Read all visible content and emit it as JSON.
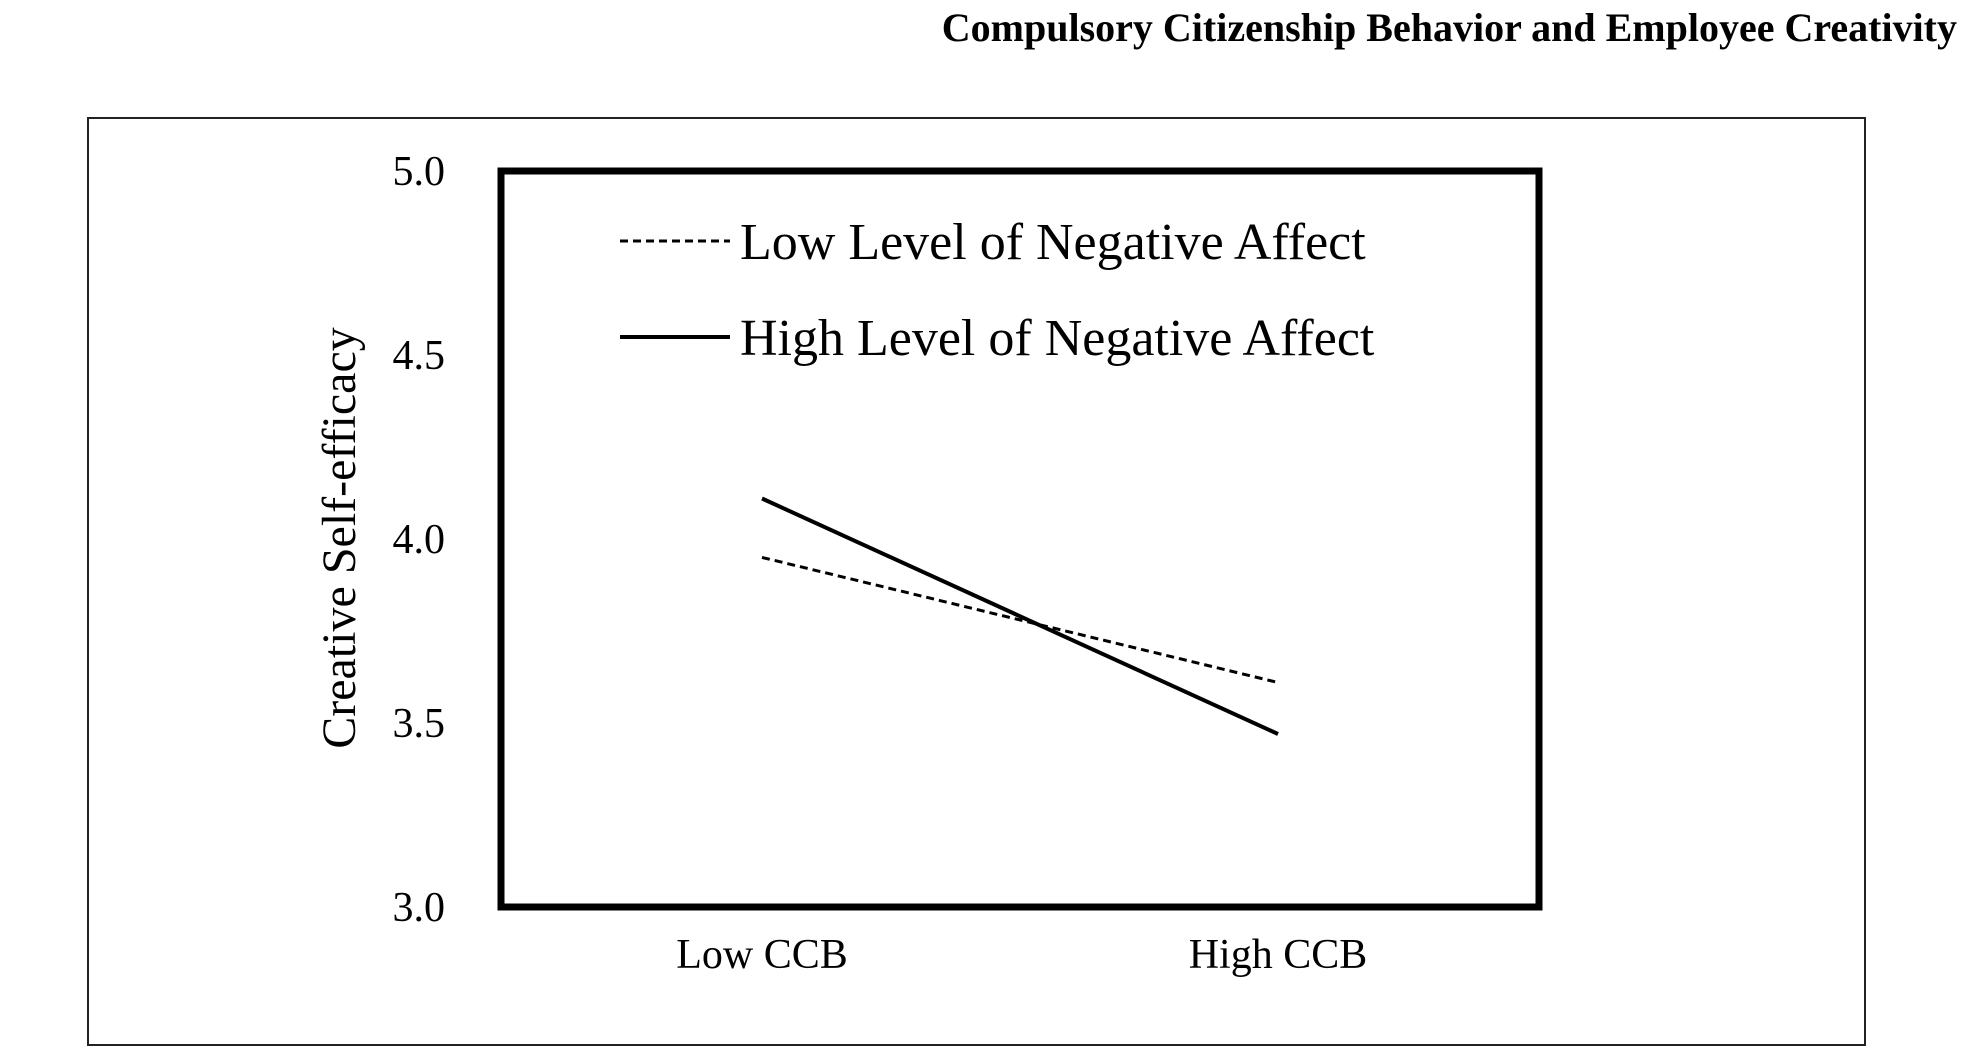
{
  "header": {
    "running_title": "Compulsory Citizenship Behavior and Employee Creativity"
  },
  "chart_data": {
    "type": "line",
    "title": "",
    "xlabel": "",
    "ylabel": "Creative Self-efficacy",
    "categories": [
      "Low CCB",
      "High CCB"
    ],
    "ylim": [
      3.0,
      5.0
    ],
    "yticks": [
      "3.0",
      "3.5",
      "4.0",
      "4.5",
      "5.0"
    ],
    "grid": false,
    "legend_position": "top-left",
    "series": [
      {
        "name": "Low Level of Negative Affect",
        "values": [
          3.95,
          3.61
        ],
        "style": "dashed",
        "color": "#000000"
      },
      {
        "name": "High Level of Negative Affect",
        "values": [
          4.11,
          3.47
        ],
        "style": "solid",
        "color": "#000000"
      }
    ]
  }
}
